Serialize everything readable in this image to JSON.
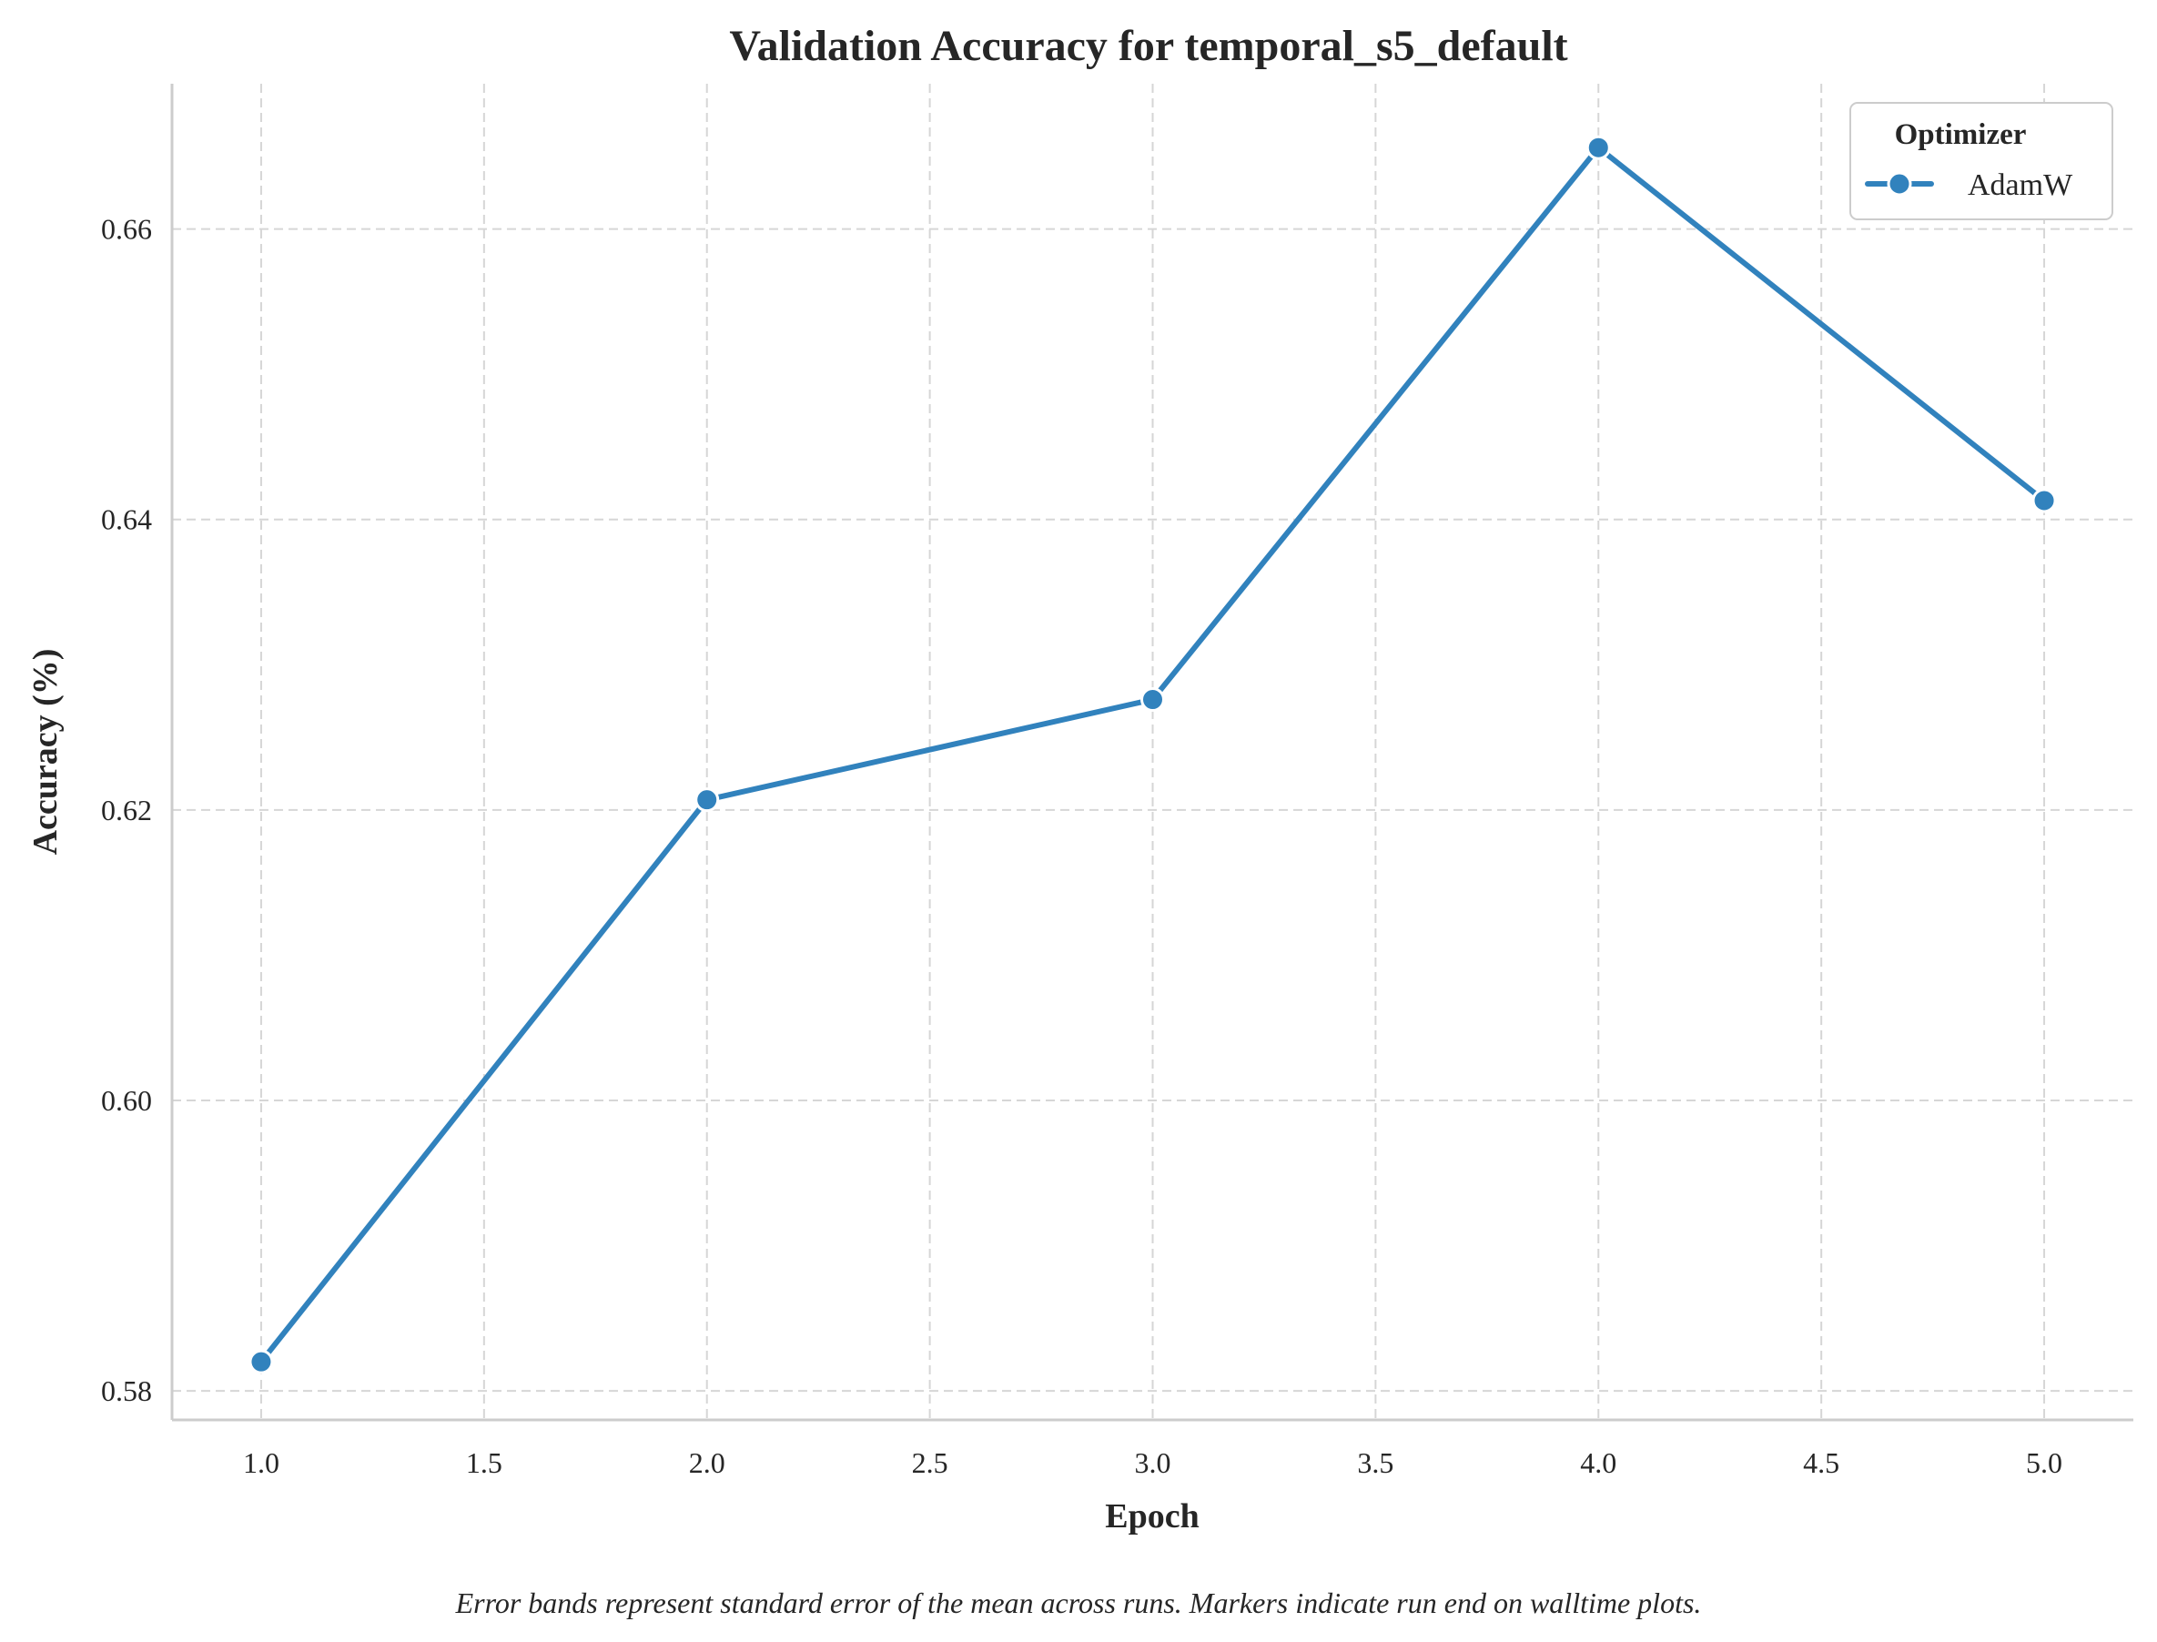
{
  "chart_data": {
    "type": "line",
    "title": "Validation Accuracy for temporal_s5_default",
    "xlabel": "Epoch",
    "ylabel": "Accuracy (%)",
    "xlim": [
      0.8,
      5.2
    ],
    "ylim": [
      0.578,
      0.67
    ],
    "x_ticks": [
      1.0,
      1.5,
      2.0,
      2.5,
      3.0,
      3.5,
      4.0,
      4.5,
      5.0
    ],
    "x_tick_labels": [
      "1.0",
      "1.5",
      "2.0",
      "2.5",
      "3.0",
      "3.5",
      "4.0",
      "4.5",
      "5.0"
    ],
    "y_ticks": [
      0.58,
      0.6,
      0.62,
      0.64,
      0.66
    ],
    "y_tick_labels": [
      "0.58",
      "0.60",
      "0.62",
      "0.64",
      "0.66"
    ],
    "grid": true,
    "legend": {
      "title": "Optimizer",
      "placement": "top-right"
    },
    "series": [
      {
        "name": "AdamW",
        "color": "#3182bd",
        "marker": "circle",
        "x": [
          1.0,
          2.0,
          3.0,
          4.0,
          5.0
        ],
        "y": [
          0.582,
          0.6207,
          0.6276,
          0.6656,
          0.6413
        ]
      }
    ],
    "caption": "Error bands represent standard error of the mean across runs. Markers indicate run end on walltime plots."
  }
}
